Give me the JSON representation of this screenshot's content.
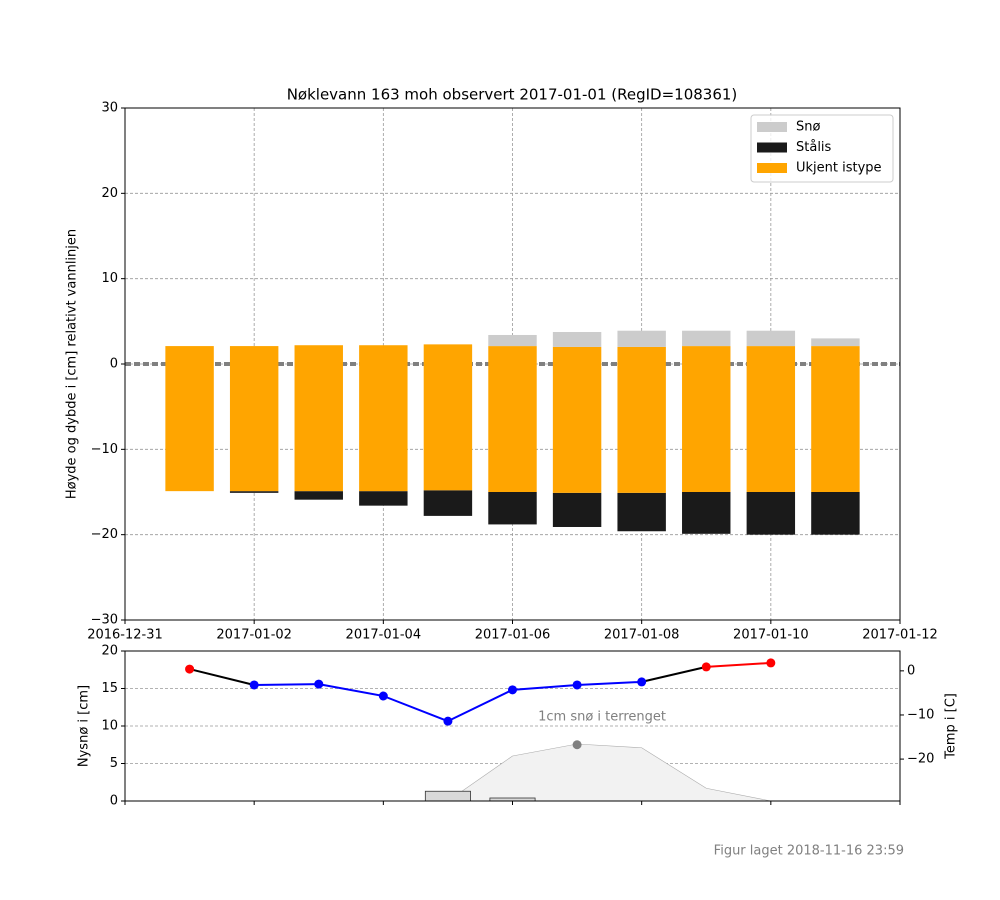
{
  "chart_data": [
    {
      "type": "bar",
      "title": "Nøklevann 163 moh observert 2017-01-01 (RegID=108361)",
      "ylabel": "Høyde og dybde i [cm] relativt vannlinjen",
      "x": [
        "2017-01-01",
        "2017-01-02",
        "2017-01-03",
        "2017-01-04",
        "2017-01-05",
        "2017-01-06",
        "2017-01-07",
        "2017-01-08",
        "2017-01-09",
        "2017-01-10",
        "2017-01-11"
      ],
      "base": [
        -14.9,
        -15.1,
        -15.9,
        -16.6,
        -17.8,
        -18.8,
        -19.1,
        -19.6,
        -19.9,
        -20.0,
        -20.0
      ],
      "series": [
        {
          "name": "Snø",
          "color": "#cccccc",
          "values": [
            0,
            0,
            0,
            0,
            0,
            1.3,
            1.75,
            1.9,
            1.8,
            1.8,
            0.9
          ]
        },
        {
          "name": "Stålis",
          "color": "#1a1a1a",
          "values": [
            0,
            0.2,
            1.0,
            1.7,
            3.0,
            3.8,
            4.0,
            4.5,
            4.9,
            5.0,
            5.0
          ]
        },
        {
          "name": "Ukjent istype",
          "color": "#ffa500",
          "values": [
            17.0,
            17.0,
            17.1,
            17.1,
            17.1,
            17.1,
            17.1,
            17.1,
            17.1,
            17.1,
            17.1
          ]
        }
      ],
      "stack_order": [
        1,
        2,
        0
      ],
      "reference_line": 0,
      "xlim": [
        "2016-12-31",
        "2017-01-12"
      ],
      "xticks": [
        "2016-12-31",
        "2017-01-02",
        "2017-01-04",
        "2017-01-06",
        "2017-01-08",
        "2017-01-10",
        "2017-01-12"
      ],
      "ylim": [
        -30,
        30
      ],
      "yticks": [
        {
          "value": -30,
          "label": "−30"
        },
        {
          "value": -20,
          "label": "−20"
        },
        {
          "value": -10,
          "label": "−10"
        },
        0,
        10,
        20,
        30
      ],
      "grid": true,
      "legend": "upper right"
    },
    {
      "type": "combo",
      "ylabel": "Nysnø i [cm]",
      "y2label": "Temp i [C]",
      "x": [
        "2017-01-01",
        "2017-01-02",
        "2017-01-03",
        "2017-01-04",
        "2017-01-05",
        "2017-01-06",
        "2017-01-07",
        "2017-01-08",
        "2017-01-09",
        "2017-01-10"
      ],
      "new_snow": {
        "color": "#d9d9d9",
        "values": [
          0,
          0,
          0,
          0,
          1.3,
          0.4,
          0,
          0,
          0,
          0
        ]
      },
      "snow_depth": {
        "color": "#f2f2f2",
        "values": [
          0,
          0,
          0,
          0,
          0,
          6.0,
          7.6,
          7.1,
          1.7,
          0
        ]
      },
      "temperature": {
        "axis": "y2",
        "warm_color": "red",
        "cold_color": "blue",
        "line_color": "black",
        "values": [
          0.4,
          -3.2,
          -3.0,
          -5.7,
          -11.4,
          -4.3,
          -3.2,
          -2.5,
          0.9,
          1.8
        ]
      },
      "annotation": {
        "text": "1cm snø i terrenget",
        "x": "2017-01-07",
        "y": 7.5
      },
      "ylim": [
        0,
        20
      ],
      "yticks": [
        0,
        5,
        10,
        15,
        20
      ],
      "y2lim": [
        -29.5,
        4.5
      ],
      "y2ticks": [
        {
          "value": -20,
          "label": "−20"
        },
        {
          "value": -10,
          "label": "−10"
        },
        0
      ],
      "grid": true
    }
  ],
  "footer": "Figur laget 2018-11-16 23:59"
}
